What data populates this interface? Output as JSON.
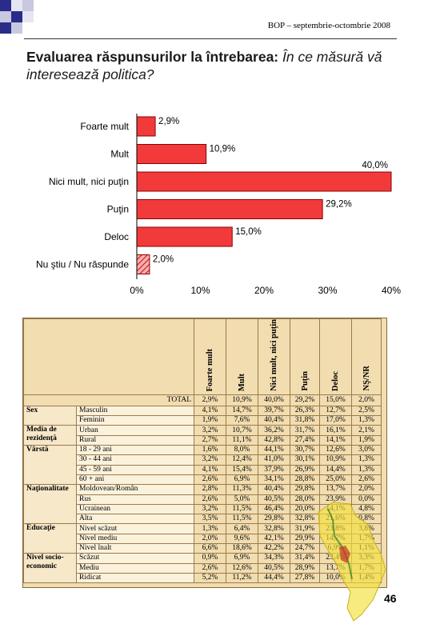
{
  "header": "BOP – septembrie-octombrie 2008",
  "title_bold": "Evaluarea răspunsurilor la întrebarea: ",
  "title_italic": "În ce măsură vă interesează politica?",
  "page_number": "46",
  "colors": {
    "bar": "#f23a3a",
    "bar_stroke": "#8a0000",
    "table_bg": "#f1ddb0",
    "deco": "#2b2c8a"
  },
  "chart_data": {
    "type": "bar",
    "orientation": "horizontal",
    "categories": [
      "Foarte mult",
      "Mult",
      "Nici mult, nici puţin",
      "Puţin",
      "Deloc",
      "Nu ştiu / Nu răspunde"
    ],
    "values": [
      2.9,
      10.9,
      40.0,
      29.2,
      15.0,
      2.0
    ],
    "value_labels": [
      "2,9%",
      "10,9%",
      "40,0%",
      "29,2%",
      "15,0%",
      "2,0%"
    ],
    "xlim": [
      0,
      40
    ],
    "xticks": [
      0,
      10,
      20,
      30,
      40
    ],
    "xtick_labels": [
      "0%",
      "10%",
      "20%",
      "30%",
      "40%"
    ],
    "grid": false,
    "hatched_category": "Nu ştiu / Nu răspunde"
  },
  "table": {
    "columns": [
      "Foarte mult",
      "Mult",
      "Nici mult, nici puţin",
      "Puţin",
      "Deloc",
      "NŞ/NR"
    ],
    "total_label": "TOTAL",
    "total": [
      "2,9%",
      "10,9%",
      "40,0%",
      "29,2%",
      "15,0%",
      "2,0%"
    ],
    "groups": [
      {
        "label": "Sex",
        "rows": [
          {
            "label": "Masculin",
            "values": [
              "4,1%",
              "14,7%",
              "39,7%",
              "26,3%",
              "12,7%",
              "2,5%"
            ]
          },
          {
            "label": "Feminin",
            "values": [
              "1,9%",
              "7,6%",
              "40,4%",
              "31,8%",
              "17,0%",
              "1,3%"
            ]
          }
        ]
      },
      {
        "label": "Media de rezidenţă",
        "rows": [
          {
            "label": "Urban",
            "values": [
              "3,2%",
              "10,7%",
              "36,2%",
              "31,7%",
              "16,1%",
              "2,1%"
            ]
          },
          {
            "label": "Rural",
            "values": [
              "2,7%",
              "11,1%",
              "42,8%",
              "27,4%",
              "14,1%",
              "1,9%"
            ]
          }
        ]
      },
      {
        "label": "Vârstă",
        "rows": [
          {
            "label": "18 - 29 ani",
            "values": [
              "1,6%",
              "8,0%",
              "44,1%",
              "30,7%",
              "12,6%",
              "3,0%"
            ]
          },
          {
            "label": "30 - 44 ani",
            "values": [
              "3,2%",
              "12,4%",
              "41,0%",
              "30,1%",
              "10,9%",
              "1,3%"
            ]
          },
          {
            "label": "45 - 59 ani",
            "values": [
              "4,1%",
              "15,4%",
              "37,9%",
              "26,9%",
              "14,4%",
              "1,3%"
            ]
          },
          {
            "label": "60 + ani",
            "values": [
              "2,6%",
              "6,9%",
              "34,1%",
              "28,8%",
              "25,0%",
              "2,6%"
            ]
          }
        ]
      },
      {
        "label": "Naţionalitate",
        "rows": [
          {
            "label": "Moldovean/Român",
            "values": [
              "2,8%",
              "11,3%",
              "40,4%",
              "29,8%",
              "13,7%",
              "2,0%"
            ]
          },
          {
            "label": "Rus",
            "values": [
              "2,6%",
              "5,0%",
              "40,5%",
              "28,0%",
              "23,9%",
              "0,0%"
            ]
          },
          {
            "label": "Ucrainean",
            "values": [
              "3,2%",
              "11,5%",
              "46,4%",
              "20,0%",
              "14,1%",
              "4,8%"
            ]
          },
          {
            "label": "Alta",
            "values": [
              "3,5%",
              "11,5%",
              "29,8%",
              "32,8%",
              "21,6%",
              "0,8%"
            ]
          }
        ]
      },
      {
        "label": "Educaţie",
        "rows": [
          {
            "label": "Nivel scăzut",
            "values": [
              "1,3%",
              "6,4%",
              "32,8%",
              "31,9%",
              "23,8%",
              "3,8%"
            ]
          },
          {
            "label": "Nivel mediu",
            "values": [
              "2,0%",
              "9,6%",
              "42,1%",
              "29,9%",
              "14,7%",
              "1,7%"
            ]
          },
          {
            "label": "Nivel înalt",
            "values": [
              "6,6%",
              "18,6%",
              "42,2%",
              "24,7%",
              "6,9%",
              "1,1%"
            ]
          }
        ]
      },
      {
        "label": "Nivel socio-economic",
        "rows": [
          {
            "label": "Scăzut",
            "values": [
              "0,9%",
              "6,9%",
              "34,3%",
              "31,4%",
              "23,4%",
              "3,3%"
            ]
          },
          {
            "label": "Mediu",
            "values": [
              "2,6%",
              "12,6%",
              "40,5%",
              "28,9%",
              "13,7%",
              "1,7%"
            ]
          },
          {
            "label": "Ridicat",
            "values": [
              "5,2%",
              "11,2%",
              "44,4%",
              "27,8%",
              "10,0%",
              "1,4%"
            ]
          }
        ]
      }
    ]
  }
}
